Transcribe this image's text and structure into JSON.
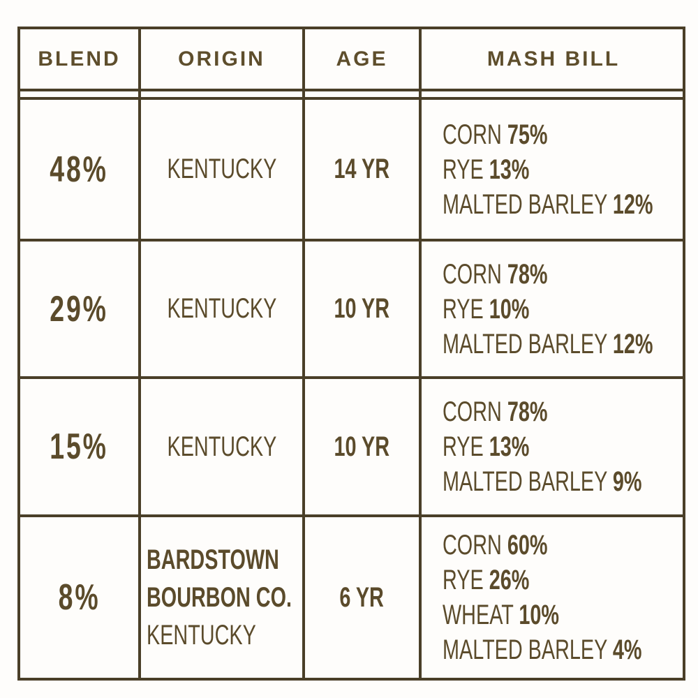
{
  "headers": [
    "BLEND",
    "ORIGIN",
    "AGE",
    "MASH BILL"
  ],
  "rows": [
    {
      "blend": "48%",
      "origin": [
        "KENTUCKY"
      ],
      "origin_bold": [],
      "age": "14 YR",
      "mash": [
        {
          "grain": "CORN",
          "pct": "75%"
        },
        {
          "grain": "RYE",
          "pct": "13%"
        },
        {
          "grain": "MALTED BARLEY",
          "pct": "12%"
        }
      ]
    },
    {
      "blend": "29%",
      "origin": [
        "KENTUCKY"
      ],
      "origin_bold": [],
      "age": "10 YR",
      "mash": [
        {
          "grain": "CORN",
          "pct": "78%"
        },
        {
          "grain": "RYE",
          "pct": "10%"
        },
        {
          "grain": "MALTED BARLEY",
          "pct": "12%"
        }
      ]
    },
    {
      "blend": "15%",
      "origin": [
        "KENTUCKY"
      ],
      "origin_bold": [],
      "age": "10 YR",
      "mash": [
        {
          "grain": "CORN",
          "pct": "78%"
        },
        {
          "grain": "RYE",
          "pct": "13%"
        },
        {
          "grain": "MALTED BARLEY",
          "pct": "9%"
        }
      ]
    },
    {
      "blend": "8%",
      "origin": [
        "KENTUCKY"
      ],
      "origin_bold": [
        "BARDSTOWN",
        "BOURBON CO."
      ],
      "age": "6 YR",
      "mash": [
        {
          "grain": "CORN",
          "pct": "60%"
        },
        {
          "grain": "RYE",
          "pct": "26%"
        },
        {
          "grain": "WHEAT",
          "pct": "10%"
        },
        {
          "grain": "MALTED BARLEY",
          "pct": "4%"
        }
      ]
    }
  ],
  "colors": {
    "border": "#4a3f28",
    "text": "#5b4b2b",
    "background": "#fefdfb"
  }
}
